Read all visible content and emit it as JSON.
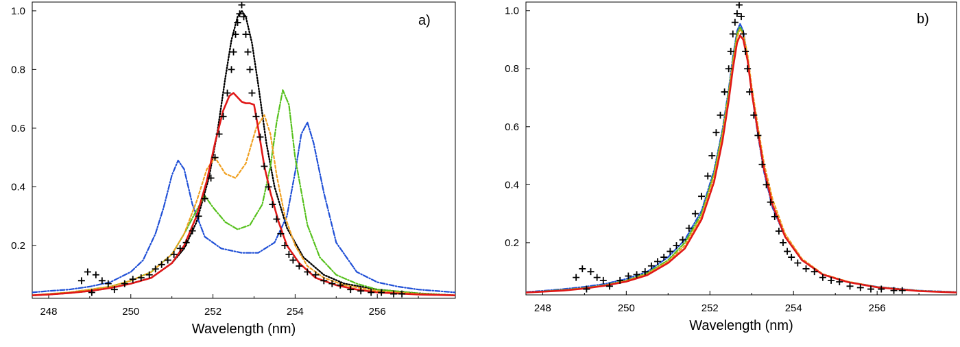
{
  "chart_data": [
    {
      "type": "line",
      "panel_label": "a)",
      "xlabel": "Wavelength (nm)",
      "ylabel": "",
      "xlim": [
        247.6,
        257.9
      ],
      "ylim": [
        0.02,
        1.03
      ],
      "xticks": [
        248,
        250,
        252,
        254,
        256
      ],
      "xtick_labels": [
        "248",
        "250",
        "252",
        "254",
        "256"
      ],
      "yticks": [
        0.2,
        0.4,
        0.6,
        0.8,
        1.0
      ],
      "ytick_labels": [
        "0.2",
        "0.4",
        "0.6",
        "0.8",
        "1.0"
      ],
      "grid": false,
      "series": [
        {
          "style": "markers-plus",
          "color": "#000000",
          "x": [
            248.8,
            248.95,
            249.05,
            249.15,
            249.3,
            249.45,
            249.6,
            249.85,
            250.05,
            250.25,
            250.45,
            250.6,
            250.75,
            250.9,
            251.05,
            251.2,
            251.35,
            251.5,
            251.65,
            251.8,
            251.95,
            252.05,
            252.15,
            252.25,
            252.35,
            252.45,
            252.5,
            252.55,
            252.6,
            252.65,
            252.7,
            252.75,
            252.8,
            252.85,
            252.9,
            252.95,
            253.05,
            253.15,
            253.25,
            253.35,
            253.45,
            253.55,
            253.65,
            253.75,
            253.85,
            253.95,
            254.1,
            254.3,
            254.5,
            254.7,
            254.9,
            255.1,
            255.35,
            255.6,
            255.85,
            256.1,
            256.4,
            256.6
          ],
          "y": [
            0.08,
            0.11,
            0.04,
            0.1,
            0.08,
            0.07,
            0.05,
            0.07,
            0.085,
            0.09,
            0.1,
            0.12,
            0.135,
            0.15,
            0.17,
            0.19,
            0.21,
            0.25,
            0.3,
            0.36,
            0.43,
            0.5,
            0.58,
            0.64,
            0.72,
            0.8,
            0.86,
            0.92,
            0.96,
            0.99,
            1.02,
            0.98,
            0.92,
            0.86,
            0.8,
            0.72,
            0.64,
            0.57,
            0.47,
            0.4,
            0.34,
            0.29,
            0.24,
            0.2,
            0.17,
            0.15,
            0.13,
            0.11,
            0.1,
            0.08,
            0.07,
            0.065,
            0.05,
            0.045,
            0.04,
            0.04,
            0.035,
            0.035
          ]
        },
        {
          "style": "dotted",
          "color": "#000000",
          "x": [
            247.6,
            248,
            248.5,
            249,
            249.5,
            250,
            250.5,
            251,
            251.3,
            251.6,
            251.9,
            252.1,
            252.3,
            252.45,
            252.6,
            252.7,
            252.8,
            252.95,
            253.1,
            253.3,
            253.5,
            253.8,
            254.2,
            254.7,
            255.2,
            256,
            257,
            257.9
          ],
          "y": [
            0.03,
            0.033,
            0.038,
            0.045,
            0.055,
            0.07,
            0.09,
            0.14,
            0.19,
            0.28,
            0.43,
            0.58,
            0.77,
            0.9,
            0.98,
            1.0,
            0.98,
            0.89,
            0.75,
            0.55,
            0.4,
            0.26,
            0.16,
            0.1,
            0.07,
            0.05,
            0.037,
            0.03
          ]
        },
        {
          "style": "dash-dot",
          "color": "#1f4fd6",
          "x": [
            247.6,
            248,
            248.5,
            249,
            249.5,
            250,
            250.3,
            250.6,
            250.8,
            251.0,
            251.15,
            251.3,
            251.5,
            251.8,
            252.2,
            252.7,
            253.1,
            253.5,
            253.8,
            254.0,
            254.15,
            254.3,
            254.45,
            254.7,
            255.0,
            255.5,
            256,
            256.5,
            257,
            257.9
          ],
          "y": [
            0.04,
            0.045,
            0.05,
            0.06,
            0.075,
            0.11,
            0.15,
            0.24,
            0.33,
            0.44,
            0.49,
            0.46,
            0.34,
            0.23,
            0.19,
            0.175,
            0.175,
            0.21,
            0.3,
            0.45,
            0.58,
            0.62,
            0.55,
            0.38,
            0.21,
            0.11,
            0.075,
            0.06,
            0.05,
            0.04
          ]
        },
        {
          "style": "dash-dot",
          "color": "#55c01c",
          "x": [
            247.6,
            248,
            248.5,
            249,
            249.5,
            250,
            250.5,
            251,
            251.3,
            251.6,
            251.8,
            252.0,
            252.3,
            252.6,
            252.9,
            253.2,
            253.4,
            253.55,
            253.7,
            253.85,
            254.0,
            254.3,
            254.6,
            255.0,
            255.5,
            256,
            257,
            257.9
          ],
          "y": [
            0.03,
            0.035,
            0.04,
            0.05,
            0.06,
            0.08,
            0.11,
            0.17,
            0.24,
            0.32,
            0.37,
            0.33,
            0.28,
            0.255,
            0.27,
            0.34,
            0.47,
            0.62,
            0.73,
            0.68,
            0.5,
            0.27,
            0.16,
            0.1,
            0.07,
            0.05,
            0.037,
            0.03
          ]
        },
        {
          "style": "dashed",
          "color": "#f0a020",
          "x": [
            247.6,
            248,
            248.5,
            249,
            249.5,
            250,
            250.5,
            251,
            251.3,
            251.6,
            251.85,
            252.05,
            252.3,
            252.55,
            252.8,
            253.05,
            253.25,
            253.4,
            253.55,
            253.75,
            254.0,
            254.3,
            254.7,
            255.2,
            256,
            257,
            257.9
          ],
          "y": [
            0.03,
            0.035,
            0.04,
            0.05,
            0.06,
            0.08,
            0.11,
            0.17,
            0.24,
            0.35,
            0.46,
            0.5,
            0.445,
            0.43,
            0.48,
            0.6,
            0.645,
            0.58,
            0.44,
            0.3,
            0.2,
            0.13,
            0.09,
            0.065,
            0.045,
            0.035,
            0.03
          ]
        },
        {
          "style": "solid",
          "color": "#e01818",
          "x": [
            247.6,
            248,
            248.5,
            249,
            249.5,
            250,
            250.5,
            251,
            251.3,
            251.6,
            251.85,
            252.05,
            252.25,
            252.4,
            252.5,
            252.6,
            252.7,
            252.8,
            252.9,
            253.0,
            253.1,
            253.25,
            253.4,
            253.6,
            253.8,
            254.1,
            254.5,
            255,
            255.5,
            256,
            257,
            257.9
          ],
          "y": [
            0.03,
            0.033,
            0.038,
            0.045,
            0.055,
            0.07,
            0.09,
            0.14,
            0.2,
            0.3,
            0.42,
            0.55,
            0.66,
            0.71,
            0.72,
            0.705,
            0.69,
            0.685,
            0.685,
            0.68,
            0.6,
            0.47,
            0.38,
            0.28,
            0.2,
            0.14,
            0.09,
            0.065,
            0.05,
            0.04,
            0.033,
            0.03
          ]
        }
      ]
    },
    {
      "type": "line",
      "panel_label": "b)",
      "xlabel": "Wavelength (nm)",
      "ylabel": "",
      "xlim": [
        247.6,
        257.9
      ],
      "ylim": [
        0.02,
        1.03
      ],
      "xticks": [
        248,
        250,
        252,
        254,
        256
      ],
      "xtick_labels": [
        "248",
        "250",
        "252",
        "254",
        "256"
      ],
      "yticks": [
        0.2,
        0.4,
        0.6,
        0.8,
        1.0
      ],
      "ytick_labels": [
        "0.2",
        "0.4",
        "0.6",
        "0.8",
        "1.0"
      ],
      "grid": false,
      "series": [
        {
          "style": "markers-plus",
          "color": "#000000",
          "x": [
            248.8,
            248.95,
            249.05,
            249.15,
            249.3,
            249.45,
            249.6,
            249.85,
            250.05,
            250.25,
            250.45,
            250.6,
            250.75,
            250.9,
            251.05,
            251.2,
            251.35,
            251.5,
            251.65,
            251.8,
            251.95,
            252.05,
            252.15,
            252.25,
            252.35,
            252.45,
            252.5,
            252.55,
            252.6,
            252.65,
            252.7,
            252.75,
            252.8,
            252.85,
            252.9,
            252.95,
            253.05,
            253.15,
            253.25,
            253.35,
            253.45,
            253.55,
            253.65,
            253.75,
            253.85,
            253.95,
            254.1,
            254.3,
            254.5,
            254.7,
            254.9,
            255.1,
            255.35,
            255.6,
            255.85,
            256.1,
            256.4,
            256.6
          ],
          "y": [
            0.08,
            0.11,
            0.04,
            0.1,
            0.08,
            0.07,
            0.05,
            0.07,
            0.085,
            0.09,
            0.1,
            0.12,
            0.135,
            0.15,
            0.17,
            0.19,
            0.21,
            0.25,
            0.3,
            0.36,
            0.43,
            0.5,
            0.58,
            0.64,
            0.72,
            0.8,
            0.86,
            0.92,
            0.96,
            0.99,
            1.02,
            0.98,
            0.92,
            0.86,
            0.8,
            0.72,
            0.64,
            0.57,
            0.47,
            0.4,
            0.34,
            0.29,
            0.24,
            0.2,
            0.17,
            0.15,
            0.13,
            0.11,
            0.1,
            0.08,
            0.07,
            0.065,
            0.05,
            0.045,
            0.04,
            0.04,
            0.035,
            0.035
          ]
        },
        {
          "style": "dash-dot",
          "color": "#1f4fd6",
          "x": [
            247.6,
            248,
            248.5,
            249,
            249.5,
            250,
            250.5,
            251,
            251.4,
            251.8,
            252.1,
            252.3,
            252.45,
            252.55,
            252.65,
            252.72,
            252.8,
            252.9,
            253.0,
            253.15,
            253.3,
            253.5,
            253.8,
            254.2,
            254.7,
            255.3,
            256,
            257,
            257.9
          ],
          "y": [
            0.03,
            0.034,
            0.04,
            0.048,
            0.058,
            0.075,
            0.1,
            0.15,
            0.21,
            0.31,
            0.45,
            0.59,
            0.73,
            0.84,
            0.93,
            0.955,
            0.93,
            0.84,
            0.72,
            0.57,
            0.44,
            0.32,
            0.22,
            0.14,
            0.09,
            0.065,
            0.048,
            0.035,
            0.03
          ]
        },
        {
          "style": "dash-dot",
          "color": "#55c01c",
          "x": [
            247.6,
            248,
            248.5,
            249,
            249.5,
            250,
            250.5,
            251,
            251.4,
            251.8,
            252.1,
            252.3,
            252.45,
            252.55,
            252.65,
            252.72,
            252.8,
            252.9,
            253.0,
            253.15,
            253.3,
            253.5,
            253.8,
            254.2,
            254.7,
            255.3,
            256,
            257,
            257.9
          ],
          "y": [
            0.028,
            0.032,
            0.037,
            0.044,
            0.054,
            0.07,
            0.095,
            0.14,
            0.2,
            0.3,
            0.44,
            0.58,
            0.72,
            0.83,
            0.92,
            0.945,
            0.92,
            0.84,
            0.72,
            0.58,
            0.45,
            0.33,
            0.22,
            0.14,
            0.09,
            0.065,
            0.047,
            0.034,
            0.029
          ]
        },
        {
          "style": "dashed",
          "color": "#f0a020",
          "x": [
            247.6,
            248,
            248.5,
            249,
            249.5,
            250,
            250.5,
            251,
            251.4,
            251.8,
            252.1,
            252.3,
            252.45,
            252.55,
            252.65,
            252.72,
            252.8,
            252.9,
            253.0,
            253.15,
            253.3,
            253.5,
            253.8,
            254.2,
            254.7,
            255.3,
            256,
            257,
            257.9
          ],
          "y": [
            0.028,
            0.031,
            0.036,
            0.043,
            0.053,
            0.068,
            0.092,
            0.135,
            0.19,
            0.29,
            0.43,
            0.57,
            0.71,
            0.82,
            0.91,
            0.935,
            0.92,
            0.85,
            0.74,
            0.6,
            0.47,
            0.35,
            0.23,
            0.145,
            0.092,
            0.066,
            0.047,
            0.034,
            0.029
          ]
        },
        {
          "style": "solid",
          "color": "#e01818",
          "x": [
            247.6,
            248,
            248.5,
            249,
            249.5,
            250,
            250.5,
            251,
            251.4,
            251.8,
            252.1,
            252.3,
            252.45,
            252.55,
            252.65,
            252.72,
            252.8,
            252.9,
            253.0,
            253.15,
            253.3,
            253.5,
            253.8,
            254.2,
            254.7,
            255.3,
            256,
            257,
            257.9
          ],
          "y": [
            0.028,
            0.031,
            0.035,
            0.042,
            0.052,
            0.066,
            0.088,
            0.13,
            0.18,
            0.28,
            0.41,
            0.55,
            0.69,
            0.8,
            0.89,
            0.915,
            0.9,
            0.83,
            0.72,
            0.58,
            0.45,
            0.33,
            0.22,
            0.14,
            0.09,
            0.064,
            0.046,
            0.033,
            0.028
          ]
        }
      ]
    }
  ]
}
